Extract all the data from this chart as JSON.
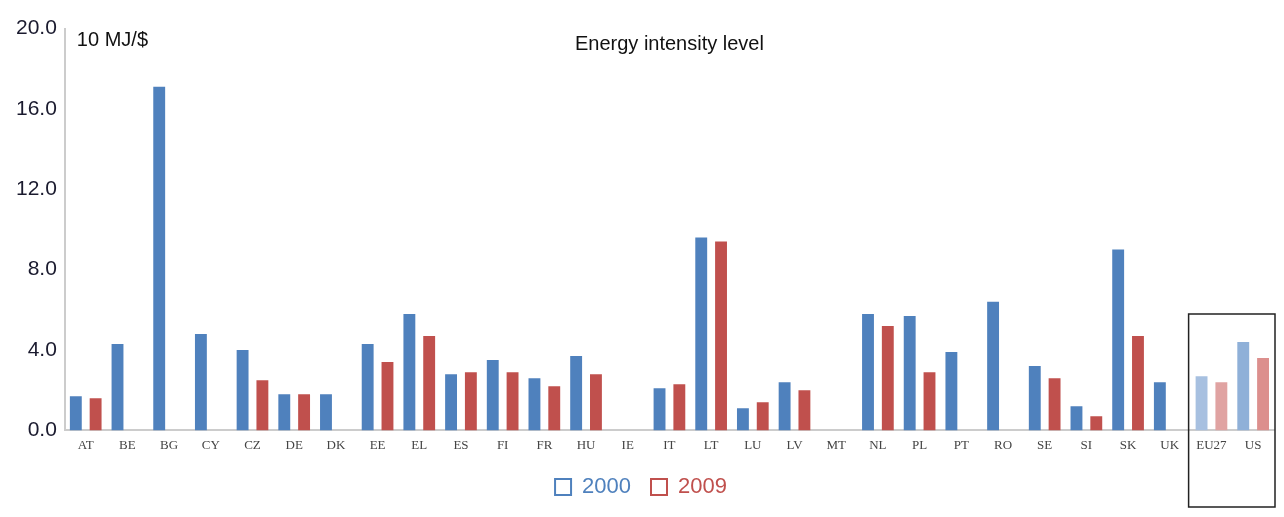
{
  "chart_data": {
    "type": "bar",
    "title": "Energy intensity level",
    "ylabel": "10 MJ/$",
    "categories": [
      "AT",
      "BE",
      "BG",
      "CY",
      "CZ",
      "DE",
      "DK",
      "EE",
      "EL",
      "ES",
      "FI",
      "FR",
      "HU",
      "IE",
      "IT",
      "LT",
      "LU",
      "LV",
      "MT",
      "NL",
      "PL",
      "PT",
      "RO",
      "SE",
      "SI",
      "SK",
      "UK",
      "EU27",
      "US"
    ],
    "series": [
      {
        "name": "2000",
        "color": "#4f81bd",
        "colors": [
          "#4f81bd",
          "#4f81bd",
          "#4f81bd",
          "#4f81bd",
          "#4f81bd",
          "#4f81bd",
          "#4f81bd",
          "#4f81bd",
          "#4f81bd",
          "#4f81bd",
          "#4f81bd",
          "#4f81bd",
          "#4f81bd",
          "#4f81bd",
          "#4f81bd",
          "#4f81bd",
          "#4f81bd",
          "#4f81bd",
          "#4f81bd",
          "#4f81bd",
          "#4f81bd",
          "#4f81bd",
          "#4f81bd",
          "#4f81bd",
          "#4f81bd",
          "#4f81bd",
          "#4f81bd",
          "#a7c0e0",
          "#8fb0d8"
        ],
        "values": [
          1.7,
          4.3,
          17.1,
          4.8,
          4.0,
          1.8,
          1.8,
          4.3,
          5.8,
          2.8,
          3.5,
          2.6,
          3.7,
          null,
          2.1,
          9.6,
          1.1,
          2.4,
          null,
          5.8,
          5.7,
          3.9,
          6.4,
          3.2,
          1.2,
          9.0,
          2.4,
          2.7,
          4.4
        ]
      },
      {
        "name": "2009",
        "color": "#c0504d",
        "colors": [
          "#c0504d",
          "#c0504d",
          "#c0504d",
          "#c0504d",
          "#c0504d",
          "#c0504d",
          "#c0504d",
          "#c0504d",
          "#c0504d",
          "#c0504d",
          "#c0504d",
          "#c0504d",
          "#c0504d",
          "#c0504d",
          "#c0504d",
          "#c0504d",
          "#c0504d",
          "#c0504d",
          "#c0504d",
          "#c0504d",
          "#c0504d",
          "#c0504d",
          "#c0504d",
          "#c0504d",
          "#c0504d",
          "#c0504d",
          "#c0504d",
          "#e0a3a2",
          "#dc8f8d"
        ],
        "values": [
          1.6,
          null,
          null,
          null,
          2.5,
          1.8,
          null,
          3.4,
          4.7,
          2.9,
          2.9,
          2.2,
          2.8,
          null,
          2.3,
          9.4,
          1.4,
          2.0,
          null,
          5.2,
          2.9,
          null,
          null,
          2.6,
          0.7,
          4.7,
          null,
          2.4,
          3.6
        ]
      }
    ],
    "ylim": [
      0,
      20
    ],
    "yticks": [
      {
        "value": 0,
        "label": "0.0"
      },
      {
        "value": 4,
        "label": "4.0"
      },
      {
        "value": 8,
        "label": "8.0"
      },
      {
        "value": 12,
        "label": "12.0"
      },
      {
        "value": 16,
        "label": "16.0"
      },
      {
        "value": 20,
        "label": "20.0"
      }
    ],
    "grid": false,
    "legend": "bottom"
  }
}
